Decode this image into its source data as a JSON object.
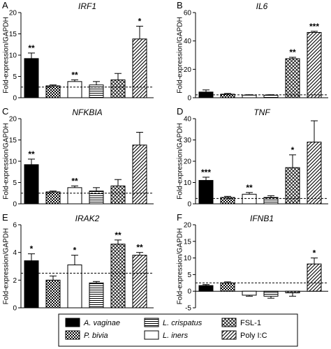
{
  "figure": {
    "ylabel": "Fold-expression/GAPDH"
  },
  "legend": {
    "items": [
      {
        "label": "A. vaginae",
        "pattern": "solid",
        "italic": true
      },
      {
        "label": "L. crispatus",
        "pattern": "hlines",
        "italic": true
      },
      {
        "label": "FSL-1",
        "pattern": "xcross",
        "italic": false
      },
      {
        "label": "P. bivia",
        "pattern": "checker",
        "italic": true
      },
      {
        "label": "L. iners",
        "pattern": "white",
        "italic": true
      },
      {
        "label": "Poly I:C",
        "pattern": "diag",
        "italic": false
      }
    ]
  },
  "colors": {
    "ink": "#000000",
    "background": "#ffffff"
  },
  "chart_data": [
    {
      "panel": "A",
      "title": "IRF1",
      "type": "bar",
      "ylabel": "Fold-expression/GAPDH",
      "ylim": [
        0,
        20
      ],
      "yticks": [
        0,
        5,
        10,
        15,
        20
      ],
      "baseline": 2.5,
      "categories": [
        "A. vaginae",
        "P. bivia",
        "L. iners",
        "L. crispatus",
        "FSL-1",
        "Poly I:C"
      ],
      "values": [
        9.2,
        2.8,
        3.8,
        3.0,
        4.2,
        13.8
      ],
      "errors": [
        1.3,
        0.2,
        0.4,
        0.8,
        1.5,
        3.0
      ],
      "significance": [
        "**",
        "",
        "**",
        "",
        "",
        "*"
      ]
    },
    {
      "panel": "B",
      "title": "IL6",
      "type": "bar",
      "ylabel": "Fold-expression/GAPDH",
      "ylim": [
        0,
        60
      ],
      "yticks": [
        0,
        20,
        40,
        60
      ],
      "baseline": 2.0,
      "categories": [
        "A. vaginae",
        "P. bivia",
        "L. iners",
        "L. crispatus",
        "FSL-1",
        "Poly I:C"
      ],
      "values": [
        4.0,
        2.5,
        1.8,
        1.8,
        27.5,
        46.0
      ],
      "errors": [
        1.5,
        0.5,
        0.3,
        0.3,
        1.0,
        0.8
      ],
      "significance": [
        "",
        "",
        "",
        "",
        "**",
        "***"
      ]
    },
    {
      "panel": "C",
      "title": "NFKBIA",
      "type": "bar",
      "ylabel": "Fold-expression/GAPDH",
      "ylim": [
        0,
        20
      ],
      "yticks": [
        0,
        5,
        10,
        15,
        20
      ],
      "baseline": 2.5,
      "categories": [
        "A. vaginae",
        "P. bivia",
        "L. iners",
        "L. crispatus",
        "FSL-1",
        "Poly I:C"
      ],
      "values": [
        9.2,
        2.8,
        3.8,
        3.0,
        4.2,
        13.8
      ],
      "errors": [
        1.3,
        0.2,
        0.4,
        0.8,
        1.5,
        3.0
      ],
      "significance": [
        "**",
        "",
        "**",
        "",
        "",
        ""
      ]
    },
    {
      "panel": "D",
      "title": "TNF",
      "type": "bar",
      "ylabel": "Fold-expression/GAPDH",
      "ylim": [
        0,
        40
      ],
      "yticks": [
        0,
        10,
        20,
        30,
        40
      ],
      "baseline": 2.5,
      "categories": [
        "A. vaginae",
        "P. bivia",
        "L. iners",
        "L. crispatus",
        "FSL-1",
        "Poly I:C"
      ],
      "values": [
        11.0,
        3.0,
        4.5,
        3.0,
        17.0,
        29.0
      ],
      "errors": [
        1.5,
        0.5,
        0.8,
        0.8,
        6.0,
        10.0
      ],
      "significance": [
        "***",
        "",
        "**",
        "",
        "*",
        ""
      ]
    },
    {
      "panel": "E",
      "title": "IRAK2",
      "type": "bar",
      "ylabel": "Fold-expression/GAPDH",
      "ylim": [
        0,
        6
      ],
      "yticks": [
        0,
        2,
        4,
        6
      ],
      "baseline": 2.5,
      "categories": [
        "A. vaginae",
        "P. bivia",
        "L. iners",
        "L. crispatus",
        "FSL-1",
        "Poly I:C"
      ],
      "values": [
        3.4,
        2.0,
        3.1,
        1.8,
        4.6,
        3.8
      ],
      "errors": [
        0.5,
        0.3,
        0.7,
        0.1,
        0.3,
        0.2
      ],
      "significance": [
        "*",
        "",
        "*",
        "",
        "**",
        "**"
      ]
    },
    {
      "panel": "F",
      "title": "IFNB1",
      "type": "bar",
      "ylabel": "Fold-expression/GAPDH",
      "ylim": [
        -5,
        20
      ],
      "yticks": [
        -5,
        0,
        5,
        10,
        15,
        20
      ],
      "baseline": 2.5,
      "categories": [
        "A. vaginae",
        "P. bivia",
        "L. iners",
        "L. crispatus",
        "FSL-1",
        "Poly I:C"
      ],
      "values": [
        1.7,
        2.5,
        -1.2,
        -1.5,
        -0.5,
        8.2
      ],
      "errors": [
        0.3,
        0.3,
        0.3,
        0.6,
        1.0,
        1.8
      ],
      "significance": [
        "",
        "",
        "",
        "",
        "",
        "*"
      ]
    }
  ]
}
